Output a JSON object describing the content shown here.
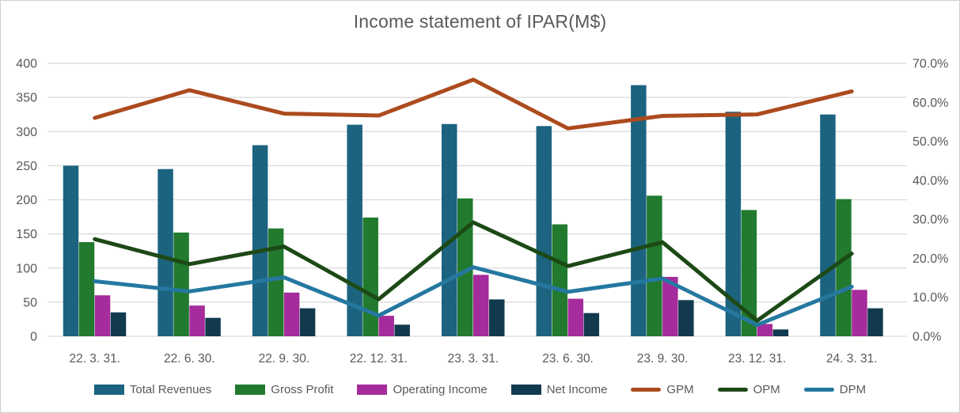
{
  "chart_data": {
    "type": "combo-bar-line",
    "title": "Income statement of IPAR(M$)",
    "categories": [
      "22. 3. 31.",
      "22. 6. 30.",
      "22. 9. 30.",
      "22. 12. 31.",
      "23. 3. 31.",
      "23. 6. 30.",
      "23. 9. 30.",
      "23. 12. 31.",
      "24. 3. 31."
    ],
    "series": [
      {
        "name": "Total Revenues",
        "type": "bar",
        "axis": "left",
        "color": "#1C6380",
        "values": [
          250,
          245,
          280,
          310,
          311,
          308,
          368,
          329,
          325
        ]
      },
      {
        "name": "Gross Profit",
        "type": "bar",
        "axis": "left",
        "color": "#217A2E",
        "values": [
          138,
          152,
          158,
          174,
          202,
          164,
          206,
          185,
          201
        ]
      },
      {
        "name": "Operating Income",
        "type": "bar",
        "axis": "left",
        "color": "#A52C9C",
        "values": [
          60,
          45,
          64,
          30,
          90,
          55,
          87,
          18,
          68
        ]
      },
      {
        "name": "Net Income",
        "type": "bar",
        "axis": "left",
        "color": "#123A4F",
        "values": [
          35,
          27,
          41,
          17,
          54,
          34,
          53,
          10,
          41
        ]
      },
      {
        "name": "GPM",
        "type": "line",
        "axis": "right",
        "color": "#AC4B1E",
        "values": [
          56.0,
          63.1,
          57.1,
          56.6,
          65.8,
          53.3,
          56.5,
          56.9,
          62.8
        ]
      },
      {
        "name": "OPM",
        "type": "line",
        "axis": "right",
        "color": "#1C4915",
        "values": [
          24.9,
          18.5,
          23.0,
          9.5,
          29.2,
          18.0,
          24.1,
          4.0,
          21.2
        ]
      },
      {
        "name": "DPM",
        "type": "line",
        "axis": "right",
        "color": "#2478A0",
        "values": [
          14.1,
          11.5,
          15.1,
          5.3,
          17.7,
          11.4,
          14.8,
          2.9,
          12.7
        ]
      }
    ],
    "left_axis": {
      "min": 0,
      "max": 400,
      "step": 50,
      "tick_labels": [
        "400",
        "350",
        "300",
        "250",
        "200",
        "150",
        "100",
        "50",
        "0"
      ]
    },
    "right_axis": {
      "min": 0,
      "max": 70,
      "step": 10,
      "tick_labels": [
        "70.0%",
        "60.0%",
        "50.0%",
        "40.0%",
        "30.0%",
        "20.0%",
        "10.0%",
        "0.0%"
      ]
    },
    "legend_position": "bottom",
    "grid": "horizontal",
    "style": {
      "gridline_color": "#D9D9D9",
      "text_color": "#595959",
      "background": "#FFFFFF",
      "line_width": 5
    }
  }
}
